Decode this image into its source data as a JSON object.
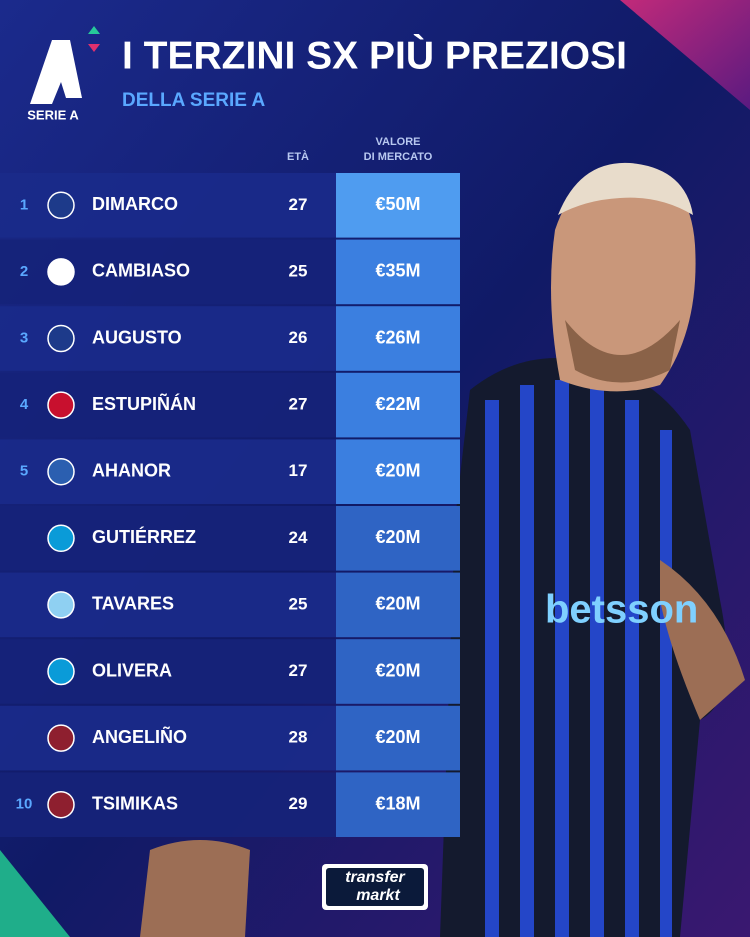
{
  "header": {
    "logo_text": "SERIE A",
    "title": "I TERZINI SX PIÙ PREZIOSI",
    "subtitle": "DELLA SERIE A"
  },
  "table": {
    "columns": {
      "age": "ETÀ",
      "value": [
        "VALORE",
        "DI MERCATO"
      ]
    },
    "rows": [
      {
        "rank": 1,
        "name": "DIMARCO",
        "age": 27,
        "value": "€50M",
        "badge_color": "#1d3a8a"
      },
      {
        "rank": 2,
        "name": "CAMBIASO",
        "age": 25,
        "value": "€35M",
        "badge_color": "#ffffff"
      },
      {
        "rank": 3,
        "name": "AUGUSTO",
        "age": 26,
        "value": "€26M",
        "badge_color": "#1d3a8a"
      },
      {
        "rank": 4,
        "name": "ESTUPIÑÁN",
        "age": 27,
        "value": "€22M",
        "badge_color": "#c8102e"
      },
      {
        "rank": 5,
        "name": "AHANOR",
        "age": 17,
        "value": "€20M",
        "badge_color": "#2b5fb0"
      },
      {
        "name": "GUTIÉRREZ",
        "age": 24,
        "value": "€20M",
        "badge_color": "#0a9bd8"
      },
      {
        "name": "TAVARES",
        "age": 25,
        "value": "€20M",
        "badge_color": "#8fd0f2"
      },
      {
        "name": "OLIVERA",
        "age": 27,
        "value": "€20M",
        "badge_color": "#0a9bd8"
      },
      {
        "name": "ANGELIÑO",
        "age": 28,
        "value": "€20M",
        "badge_color": "#8e1f2f"
      },
      {
        "rank": 10,
        "name": "TSIMIKAS",
        "age": 29,
        "value": "€18M",
        "badge_color": "#8e1f2f"
      }
    ]
  },
  "footer": {
    "logo": [
      "transfer",
      "markt"
    ]
  }
}
